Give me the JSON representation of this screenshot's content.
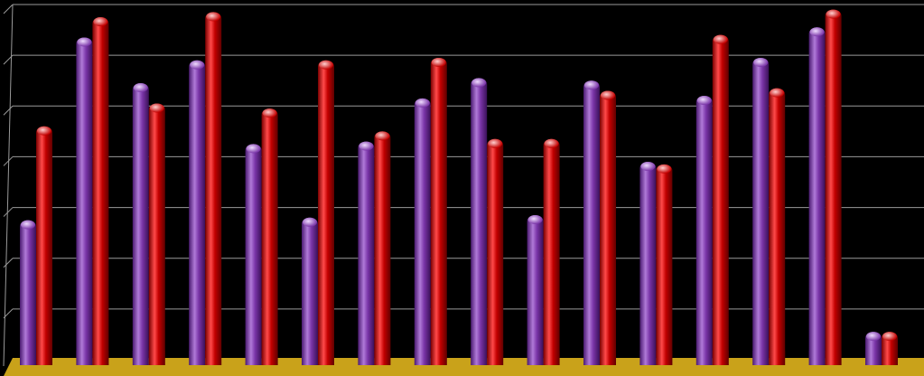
{
  "chart_data": {
    "type": "bar",
    "categories": [
      "",
      "",
      "",
      "",
      "",
      "",
      "",
      "",
      "",
      "",
      "",
      "",
      "",
      "",
      "",
      ""
    ],
    "series": [
      {
        "values": [
          2.75,
          6.35,
          5.45,
          5.9,
          4.25,
          2.8,
          4.3,
          5.15,
          5.55,
          2.85,
          5.5,
          3.9,
          5.2,
          5.95,
          6.55,
          0.55
        ]
      },
      {
        "values": [
          4.6,
          6.75,
          5.05,
          6.85,
          4.95,
          5.9,
          4.5,
          5.95,
          4.35,
          4.35,
          5.3,
          3.85,
          6.4,
          5.35,
          6.9,
          0.55
        ]
      }
    ],
    "ylim": [
      0,
      7
    ],
    "grid": true,
    "legend": "none",
    "colors": {
      "background": "#000000",
      "gridline": "#9a9a9a",
      "floor": "#c9a21a",
      "series_1": "#7a35a8",
      "series_2": "#c20000"
    }
  }
}
